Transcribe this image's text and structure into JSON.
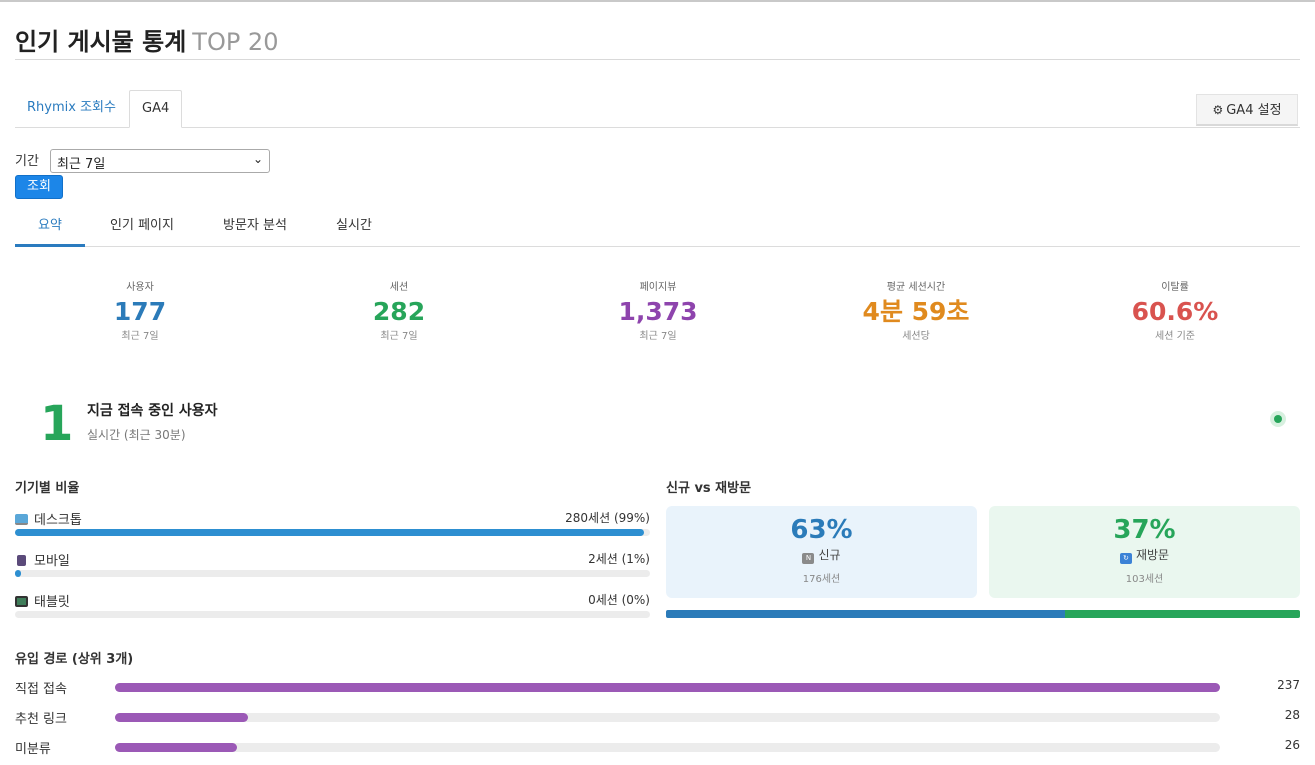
{
  "header": {
    "title": "인기 게시물 통계",
    "subtitle": "TOP 20"
  },
  "top_tabs": [
    {
      "label": "Rhymix 조회수",
      "active": false
    },
    {
      "label": "GA4",
      "active": true
    }
  ],
  "ga4_settings": {
    "icon": "gear-icon",
    "label": "GA4 설정"
  },
  "filter": {
    "label": "기간",
    "selected": "최근 7일",
    "button": "조회"
  },
  "sub_tabs": [
    {
      "label": "요약",
      "active": true
    },
    {
      "label": "인기 페이지",
      "active": false
    },
    {
      "label": "방문자 분석",
      "active": false
    },
    {
      "label": "실시간",
      "active": false
    }
  ],
  "kpis": [
    {
      "label": "사용자",
      "value": "177",
      "sub": "최근 7일",
      "color": "#2b7bb9"
    },
    {
      "label": "세션",
      "value": "282",
      "sub": "최근 7일",
      "color": "#27a55a"
    },
    {
      "label": "페이지뷰",
      "value": "1,373",
      "sub": "최근 7일",
      "color": "#8e44ad"
    },
    {
      "label": "평균 세션시간",
      "value": "4분 59초",
      "sub": "세션당",
      "color": "#e08a1e"
    },
    {
      "label": "이탈률",
      "value": "60.6%",
      "sub": "세션 기준",
      "color": "#d9534f"
    }
  ],
  "realtime": {
    "count": "1",
    "title": "지금 접속 중인 사용자",
    "sub": "실시간 (최근 30분)",
    "status_color": "#27a55a"
  },
  "device": {
    "title": "기기별 비율",
    "items": [
      {
        "name": "데스크톱",
        "icon": "desktop-icon",
        "count": "280세션 (99%)",
        "fraction": 0.99
      },
      {
        "name": "모바일",
        "icon": "mobile-icon",
        "count": "2세션 (1%)",
        "fraction": 0.01
      },
      {
        "name": "태블릿",
        "icon": "tablet-icon",
        "count": "0세션 (0%)",
        "fraction": 0
      }
    ]
  },
  "new_vs_return": {
    "title": "신규 vs 재방문",
    "new": {
      "pct": "63%",
      "label": "신규",
      "badge_icon": "new-badge-icon",
      "sub": "176세션",
      "fraction": 0.63,
      "color": "#2b7bb9",
      "bg": "#e9f3fb"
    },
    "return": {
      "pct": "37%",
      "label": "재방문",
      "badge_icon": "return-badge-icon",
      "sub": "103세션",
      "fraction": 0.37,
      "color": "#27a55a",
      "bg": "#eaf7ef"
    }
  },
  "referrers": {
    "title": "유입 경로 (상위 3개)",
    "items": [
      {
        "name": "직접 접속",
        "value": "237",
        "fraction": 1.0
      },
      {
        "name": "추천 링크",
        "value": "28",
        "fraction": 0.12
      },
      {
        "name": "미분류",
        "value": "26",
        "fraction": 0.11
      }
    ]
  }
}
